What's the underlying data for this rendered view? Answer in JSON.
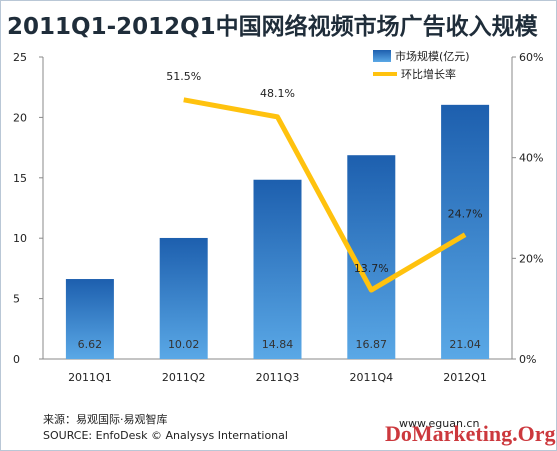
{
  "title": "2011Q1-2012Q1中国网络视频市场广告收入规模",
  "legend": {
    "bar_label": "市场规模(亿元)",
    "line_label": "环比增长率"
  },
  "source_cn": "来源：易观国际·易观智库",
  "source_en": "SOURCE: EnfoDesk © Analysys International",
  "site": "www.eguan.cn",
  "watermark": "DoMarketing.Org",
  "colors": {
    "bar_top": "#1d5fae",
    "bar_bottom": "#5aa8e6",
    "line": "#ffc20e"
  },
  "chart_data": {
    "type": "bar",
    "categories": [
      "2011Q1",
      "2011Q2",
      "2011Q3",
      "2011Q4",
      "2012Q1"
    ],
    "series": [
      {
        "name": "市场规模(亿元)",
        "type": "bar",
        "values": [
          6.62,
          10.02,
          14.84,
          16.87,
          21.04
        ],
        "labels": [
          "6.62",
          "10.02",
          "14.84",
          "16.87",
          "21.04"
        ]
      },
      {
        "name": "环比增长率",
        "type": "line",
        "axis": "right",
        "values": [
          null,
          51.5,
          48.1,
          13.7,
          24.7
        ],
        "labels": [
          "",
          "51.5%",
          "48.1%",
          "13.7%",
          "24.7%"
        ]
      }
    ],
    "ylim": [
      0,
      25
    ],
    "yticks": [
      "0",
      "5",
      "10",
      "15",
      "20",
      "25"
    ],
    "y2lim": [
      0,
      60
    ],
    "y2ticks": [
      "0%",
      "20%",
      "40%",
      "60%"
    ],
    "legend_position": "top-right",
    "grid": false
  }
}
